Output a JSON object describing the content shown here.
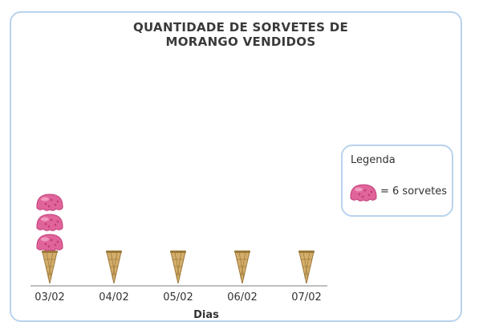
{
  "chart_data": {
    "type": "pictograph",
    "title": [
      "QUANTIDADE DE SORVETES DE",
      "MORANGO VENDIDOS"
    ],
    "xlabel": "Dias",
    "categories": [
      "03/02",
      "04/02",
      "05/02",
      "06/02",
      "07/02"
    ],
    "values": [
      3,
      0,
      0,
      0,
      0
    ],
    "unit_value": 6,
    "legend": {
      "title": "Legenda",
      "text": "= 6 sorvetes",
      "placement": "right"
    },
    "colors": {
      "scoop": "#e0649a",
      "scoop_dark": "#c23f7b",
      "scoop_light": "#f4a8c8",
      "cone": "#d4ad6a",
      "cone_dark": "#9c7a3c",
      "axis": "#aaaaaa",
      "frame": "#b9d3ec"
    }
  }
}
